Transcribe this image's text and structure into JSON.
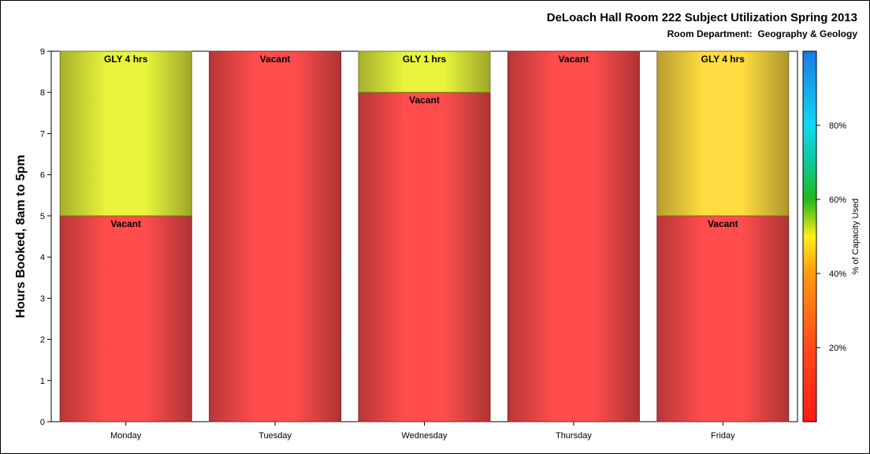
{
  "chart_data": {
    "type": "bar",
    "stacked": true,
    "title": "DeLoach Hall Room 222 Subject Utilization Spring 2013",
    "subtitle": "Room Department:  Geography & Geology",
    "ylabel": "Hours Booked, 8am to 5pm",
    "xlabel": "",
    "ylim": [
      0,
      9
    ],
    "yticks": [
      "0",
      "1",
      "2",
      "3",
      "4",
      "5",
      "6",
      "7",
      "8",
      "9"
    ],
    "categories": [
      "Monday",
      "Tuesday",
      "Wednesday",
      "Thursday",
      "Friday"
    ],
    "series": [
      {
        "name": "Vacant",
        "values": [
          5,
          9,
          8,
          9,
          5
        ],
        "labels": [
          "Vacant",
          "Vacant",
          "Vacant",
          "Vacant",
          "Vacant"
        ]
      },
      {
        "name": "GLY",
        "values": [
          4,
          0,
          1,
          0,
          4
        ],
        "labels": [
          "GLY 4 hrs",
          "",
          "GLY 1 hrs",
          "",
          "GLY 4 hrs"
        ]
      }
    ],
    "segment_colors": [
      [
        "#ff4d4d",
        "#ff4d4d",
        "#ff4d4d",
        "#ff4d4d",
        "#ff4d4d"
      ],
      [
        "#e8f53c",
        "",
        "#e8f53c",
        "",
        "#ffdc40"
      ]
    ],
    "colorbar": {
      "label": "% of Capacity Used",
      "ticks": [
        "20%",
        "40%",
        "60%",
        "80%"
      ],
      "tick_values": [
        20,
        40,
        60,
        80
      ],
      "range": [
        0,
        100
      ]
    },
    "grid": false
  }
}
